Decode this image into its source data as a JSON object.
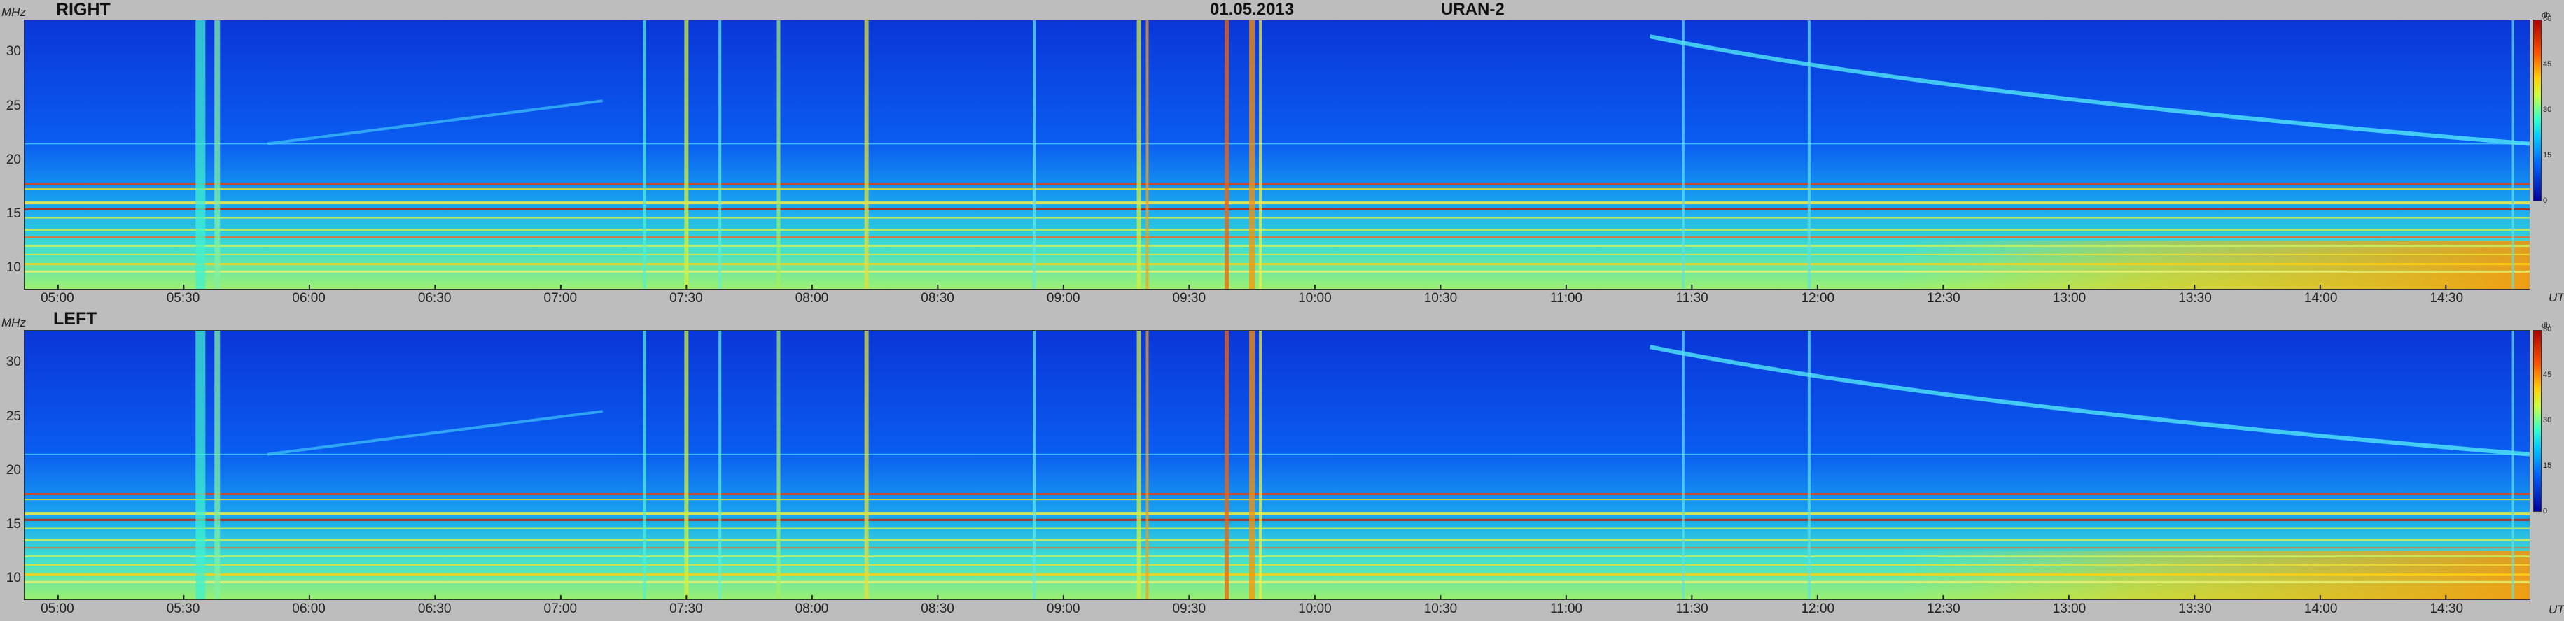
{
  "header": {
    "date": "01.05.2013",
    "instrument": "URAN-2"
  },
  "chart_data": [
    {
      "type": "heatmap",
      "panel": "RIGHT",
      "ylabel": "MHz",
      "xlabel": "UT",
      "yticks": [
        "30",
        "25",
        "20",
        "15",
        "10"
      ],
      "ylim": [
        8,
        33
      ],
      "xticks": [
        "05:00",
        "05:30",
        "06:00",
        "06:30",
        "07:00",
        "07:30",
        "08:00",
        "08:30",
        "09:00",
        "09:30",
        "10:00",
        "10:30",
        "11:00",
        "11:30",
        "12:00",
        "12:30",
        "13:00",
        "13:30",
        "14:00",
        "14:30"
      ],
      "xlim": [
        "04:52",
        "14:50"
      ],
      "colorbar": {
        "unit": "db",
        "ticks": [
          "60",
          "45",
          "30",
          "15",
          "0"
        ]
      }
    },
    {
      "type": "heatmap",
      "panel": "LEFT",
      "ylabel": "MHz",
      "xlabel": "UT",
      "yticks": [
        "30",
        "25",
        "20",
        "15",
        "10"
      ],
      "ylim": [
        8,
        33
      ],
      "xticks": [
        "05:00",
        "05:30",
        "06:00",
        "06:30",
        "07:00",
        "07:30",
        "08:00",
        "08:30",
        "09:00",
        "09:30",
        "10:00",
        "10:30",
        "11:00",
        "11:30",
        "12:00",
        "12:30",
        "13:00",
        "13:30",
        "14:00",
        "14:30"
      ],
      "xlim": [
        "04:52",
        "14:50"
      ],
      "colorbar": {
        "unit": "db",
        "ticks": [
          "60",
          "45",
          "30",
          "15",
          "0"
        ]
      }
    }
  ],
  "colors": {
    "background": "#0a3fe0",
    "band": "#d8ff30",
    "hot": "#ff3000",
    "burst": "#40ffd0"
  }
}
